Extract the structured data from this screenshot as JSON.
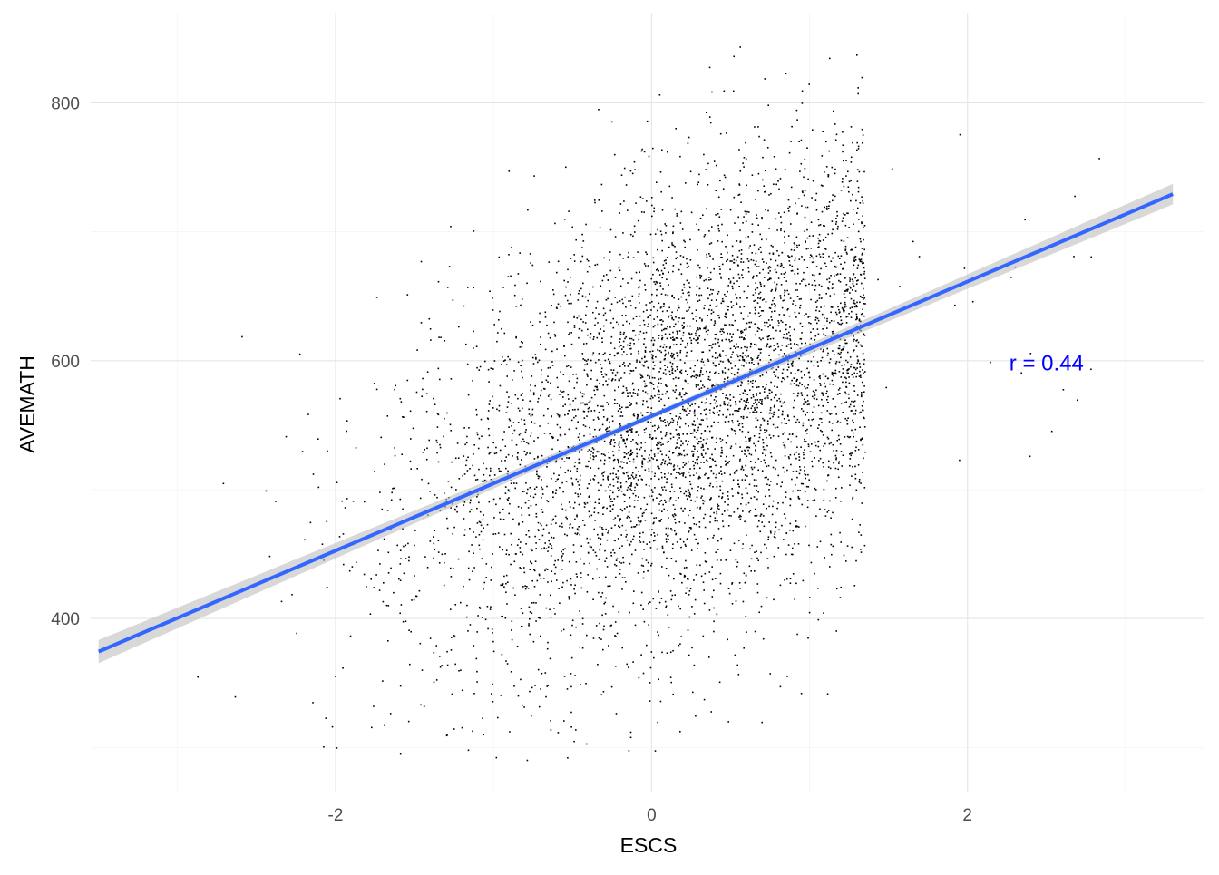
{
  "chart_data": {
    "type": "scatter",
    "xlabel": "ESCS",
    "ylabel": "AVEMATH",
    "xlim": [
      -3.55,
      3.5
    ],
    "ylim": [
      265,
      870
    ],
    "x_ticks": [
      -2,
      0,
      2
    ],
    "y_ticks": [
      400,
      600,
      800
    ],
    "x_tick_labels": [
      "-2",
      "0",
      "2"
    ],
    "y_tick_labels": [
      "400",
      "600",
      "800"
    ],
    "grid": true,
    "legend": "none",
    "annotation": {
      "text": "r = 0.44",
      "x": 2.5,
      "y": 598,
      "color": "#0000FF"
    },
    "regression": {
      "x_range": [
        -3.5,
        3.3
      ],
      "intercept": 557,
      "slope": 52.2,
      "se_band": [
        [
          -3.5,
          9
        ],
        [
          0,
          2
        ],
        [
          3.3,
          8
        ]
      ],
      "color": "#3366FF",
      "band_color": "#BEBEBE"
    },
    "scatter_summary": {
      "n_points": 5200,
      "x_mean": 0.2,
      "x_sd": 0.85,
      "y_residual_sd": 85,
      "point_color": "#000000"
    }
  }
}
